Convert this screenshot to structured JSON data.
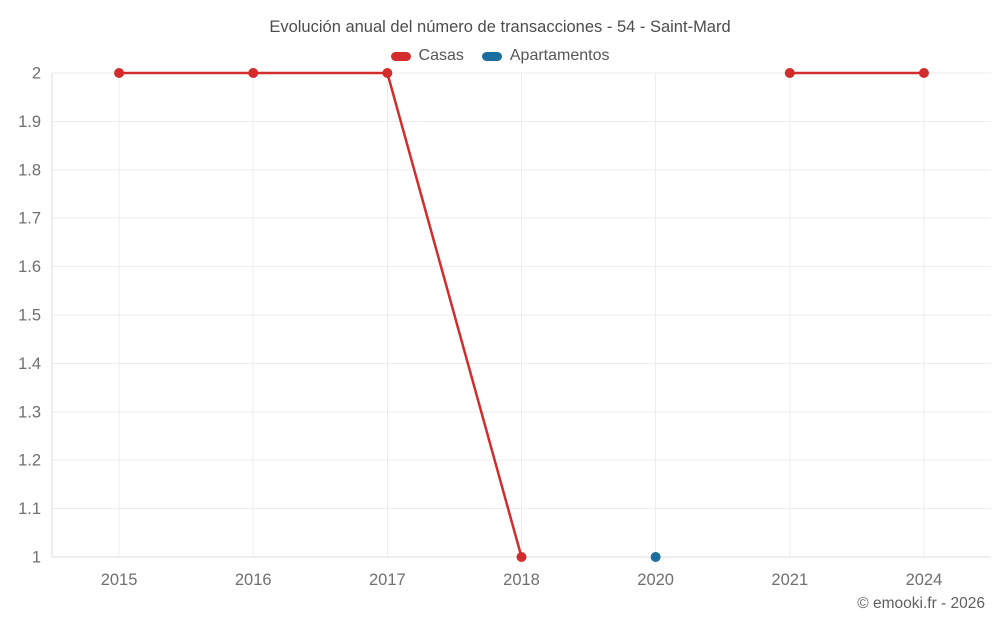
{
  "title": "Evolución anual del número de transacciones - 54 - Saint-Mard",
  "footer": {
    "copyright": "© emooki.fr - 2026"
  },
  "colors": {
    "casas": "#d32c2c",
    "apartamentos": "#1c6e9f",
    "gridline": "#ededed",
    "axis_border": "#dedede",
    "tick_text": "#6f6f6f",
    "title_text": "#4c4c4c",
    "background": "#ffffff"
  },
  "chart_data": {
    "type": "line",
    "title": "Evolución anual del número de transacciones - 54 - Saint-Mard",
    "categories": [
      "2015",
      "2016",
      "2017",
      "2018",
      "2020",
      "2021",
      "2024"
    ],
    "series": [
      {
        "name": "Casas",
        "color": "#d32c2c",
        "values": [
          2,
          2,
          2,
          1,
          null,
          2,
          2
        ]
      },
      {
        "name": "Apartamentos",
        "color": "#1c6e9f",
        "values": [
          null,
          null,
          null,
          null,
          1,
          null,
          null
        ]
      }
    ],
    "xlabel": "",
    "ylabel": "",
    "ylim": [
      1,
      2
    ],
    "yticks": [
      1,
      1.1,
      1.2,
      1.3,
      1.4,
      1.5,
      1.6,
      1.7,
      1.8,
      1.9,
      2
    ],
    "grid": true,
    "legend_position": "top",
    "gap_handling": "segments only between consecutive non-null categories",
    "point_radius": 5,
    "line_width": 2.5
  }
}
